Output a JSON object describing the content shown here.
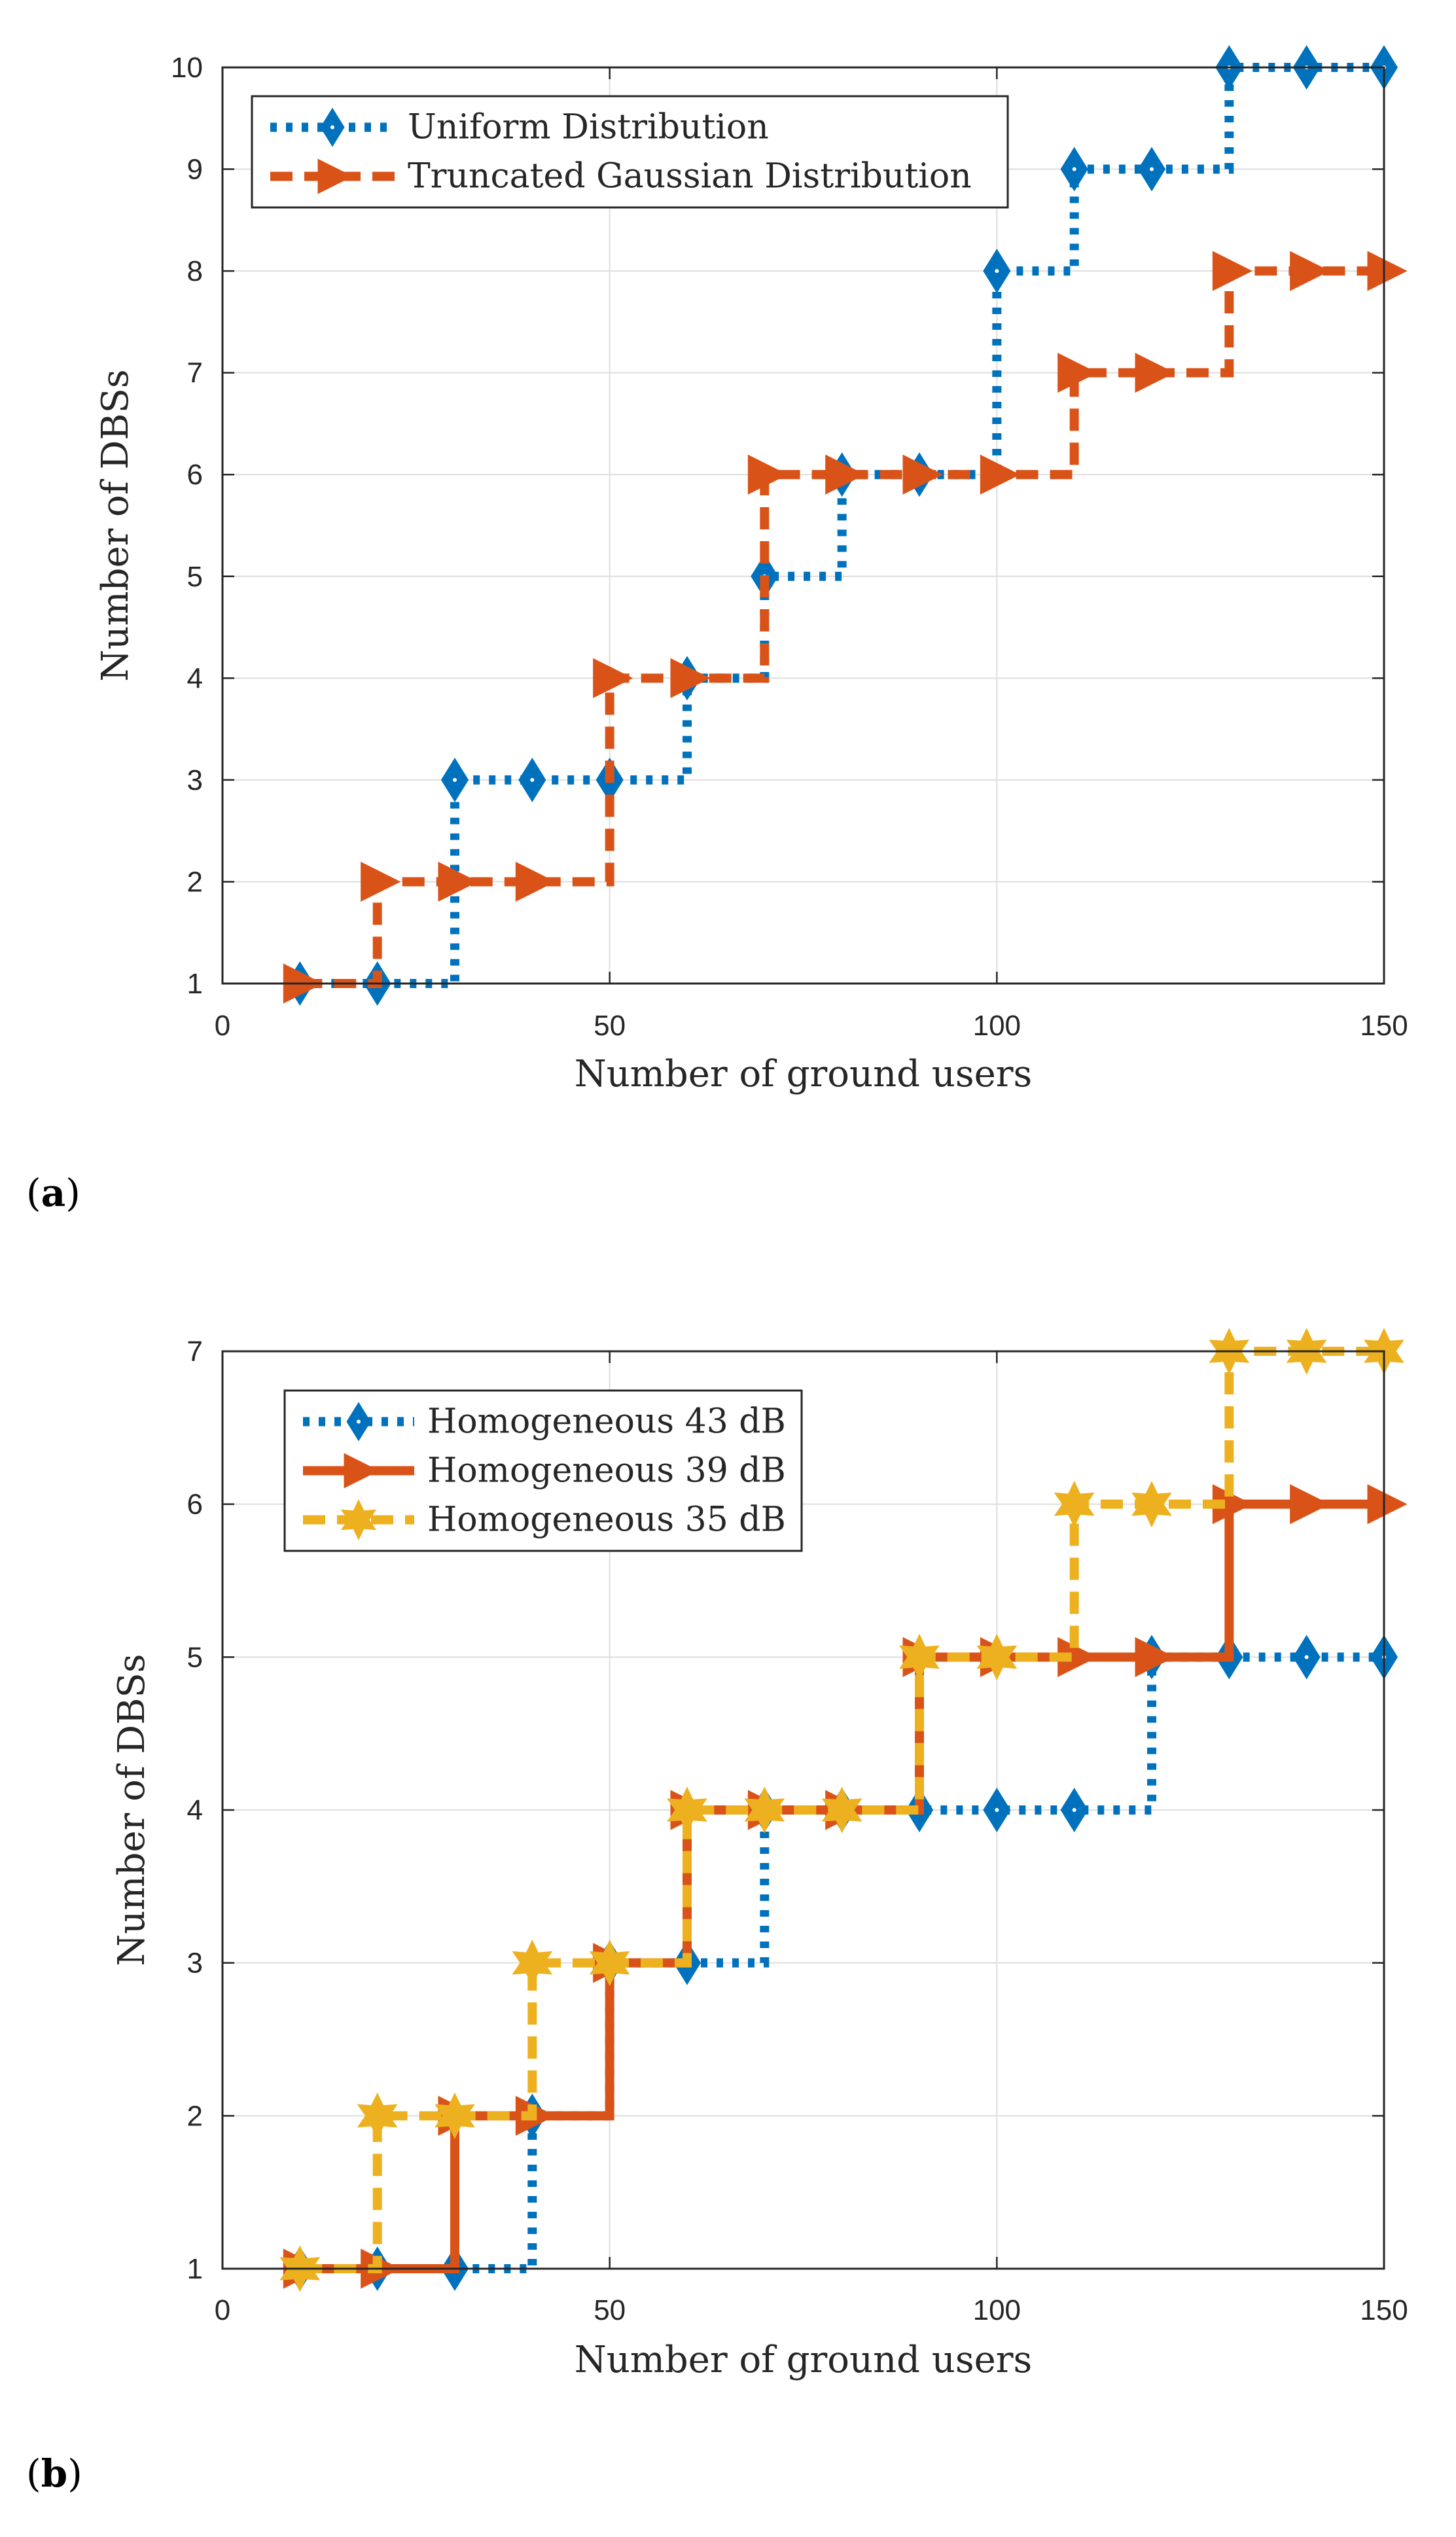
{
  "chart_data": [
    {
      "panel_label": "(a)",
      "panel_letter": "a",
      "type": "line",
      "xlabel": "Number of ground users",
      "ylabel": "Number of DBSs",
      "xlim": [
        0,
        150
      ],
      "ylim": [
        1,
        10
      ],
      "xticks": [
        0,
        50,
        100,
        150
      ],
      "yticks": [
        1,
        2,
        3,
        4,
        5,
        6,
        7,
        8,
        9,
        10
      ],
      "grid": true,
      "legend_position": "top-left",
      "x": [
        10,
        20,
        30,
        40,
        50,
        60,
        70,
        80,
        90,
        100,
        110,
        120,
        130,
        140,
        150
      ],
      "series": [
        {
          "name": "Uniform Distribution",
          "color": "#0072BD",
          "marker": "diamond",
          "line_style": "dotted",
          "values": [
            1,
            1,
            3,
            3,
            3,
            4,
            5,
            6,
            6,
            8,
            9,
            9,
            10,
            10,
            10
          ]
        },
        {
          "name": "Truncated Gaussian Distribution",
          "color": "#D95319",
          "marker": "triangle-right",
          "line_style": "dashed",
          "values": [
            1,
            2,
            2,
            2,
            4,
            4,
            6,
            6,
            6,
            6,
            7,
            7,
            8,
            8,
            8
          ]
        }
      ]
    },
    {
      "panel_label": "(b)",
      "panel_letter": "b",
      "type": "line",
      "xlabel": "Number of ground users",
      "ylabel": "Number of DBSs",
      "xlim": [
        0,
        150
      ],
      "ylim": [
        1,
        7
      ],
      "xticks": [
        0,
        50,
        100,
        150
      ],
      "yticks": [
        1,
        2,
        3,
        4,
        5,
        6,
        7
      ],
      "grid": true,
      "legend_position": "top-left",
      "x": [
        10,
        20,
        30,
        40,
        50,
        60,
        70,
        80,
        90,
        100,
        110,
        120,
        130,
        140,
        150
      ],
      "series": [
        {
          "name": "Homogeneous 43 dB",
          "color": "#0072BD",
          "marker": "diamond",
          "line_style": "dotted",
          "values": [
            1,
            1,
            1,
            2,
            3,
            3,
            4,
            4,
            4,
            4,
            4,
            5,
            5,
            5,
            5
          ]
        },
        {
          "name": "Homogeneous 39 dB",
          "color": "#D95319",
          "marker": "triangle-right",
          "line_style": "solid",
          "values": [
            1,
            1,
            2,
            2,
            3,
            4,
            4,
            4,
            5,
            5,
            5,
            5,
            6,
            6,
            6
          ]
        },
        {
          "name": "Homogeneous 35 dB",
          "color": "#EDB120",
          "marker": "hexagram",
          "line_style": "dashed",
          "values": [
            1,
            2,
            2,
            3,
            3,
            4,
            4,
            4,
            5,
            5,
            6,
            6,
            7,
            7,
            7
          ]
        }
      ]
    }
  ]
}
